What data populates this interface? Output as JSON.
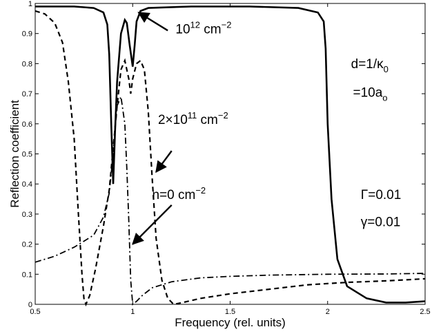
{
  "chart_data": {
    "type": "line",
    "title": "",
    "xlabel": "Frequency (rel. units)",
    "ylabel": "Reflection coefficient",
    "xlim": [
      0.5,
      2.5
    ],
    "ylim": [
      0,
      1
    ],
    "grid": false,
    "legend": "none",
    "xticks": [
      0.5,
      1,
      1.5,
      2,
      2.5
    ],
    "xtick_labels": [
      "0.5",
      "1",
      "1.5",
      "2",
      "2.5"
    ],
    "yticks": [
      0,
      0.1,
      0.2,
      0.3,
      0.4,
      0.5,
      0.6,
      0.7,
      0.8,
      0.9,
      1
    ],
    "ytick_labels": [
      "0",
      "0.1",
      "0.2",
      "0.3",
      "0.4",
      "0.5",
      "0.6",
      "0.7",
      "0.8",
      "0.9",
      "1"
    ],
    "series": [
      {
        "style": "solid",
        "points": [
          [
            0.5,
            0.99
          ],
          [
            0.7,
            0.99
          ],
          [
            0.8,
            0.985
          ],
          [
            0.85,
            0.97
          ],
          [
            0.87,
            0.93
          ],
          [
            0.88,
            0.83
          ],
          [
            0.89,
            0.6
          ],
          [
            0.9,
            0.4
          ],
          [
            0.91,
            0.58
          ],
          [
            0.92,
            0.74
          ],
          [
            0.94,
            0.9
          ],
          [
            0.96,
            0.945
          ],
          [
            0.97,
            0.935
          ],
          [
            0.985,
            0.86
          ],
          [
            1.0,
            0.79
          ],
          [
            1.01,
            0.86
          ],
          [
            1.02,
            0.94
          ],
          [
            1.04,
            0.975
          ],
          [
            1.08,
            0.985
          ],
          [
            1.3,
            0.99
          ],
          [
            1.6,
            0.99
          ],
          [
            1.85,
            0.985
          ],
          [
            1.95,
            0.97
          ],
          [
            1.98,
            0.94
          ],
          [
            1.99,
            0.85
          ],
          [
            2.0,
            0.6
          ],
          [
            2.02,
            0.35
          ],
          [
            2.05,
            0.15
          ],
          [
            2.1,
            0.06
          ],
          [
            2.2,
            0.02
          ],
          [
            2.3,
            0.006
          ],
          [
            2.4,
            0.006
          ],
          [
            2.5,
            0.01
          ]
        ]
      },
      {
        "style": "dashed",
        "points": [
          [
            0.5,
            0.975
          ],
          [
            0.55,
            0.965
          ],
          [
            0.6,
            0.935
          ],
          [
            0.64,
            0.87
          ],
          [
            0.67,
            0.74
          ],
          [
            0.7,
            0.55
          ],
          [
            0.72,
            0.32
          ],
          [
            0.74,
            0.1
          ],
          [
            0.75,
            0.02
          ],
          [
            0.76,
            0.0
          ],
          [
            0.78,
            0.03
          ],
          [
            0.81,
            0.12
          ],
          [
            0.85,
            0.26
          ],
          [
            0.88,
            0.38
          ],
          [
            0.9,
            0.52
          ],
          [
            0.92,
            0.66
          ],
          [
            0.94,
            0.78
          ],
          [
            0.96,
            0.81
          ],
          [
            0.98,
            0.75
          ],
          [
            0.99,
            0.7
          ],
          [
            1.0,
            0.75
          ],
          [
            1.02,
            0.8
          ],
          [
            1.04,
            0.81
          ],
          [
            1.06,
            0.78
          ],
          [
            1.08,
            0.64
          ],
          [
            1.1,
            0.42
          ],
          [
            1.12,
            0.22
          ],
          [
            1.15,
            0.08
          ],
          [
            1.18,
            0.02
          ],
          [
            1.21,
            0.0
          ],
          [
            1.25,
            0.005
          ],
          [
            1.35,
            0.02
          ],
          [
            1.5,
            0.035
          ],
          [
            1.7,
            0.05
          ],
          [
            1.9,
            0.065
          ],
          [
            2.1,
            0.073
          ],
          [
            2.3,
            0.078
          ],
          [
            2.5,
            0.085
          ]
        ]
      },
      {
        "style": "dashdot",
        "points": [
          [
            0.5,
            0.14
          ],
          [
            0.6,
            0.16
          ],
          [
            0.7,
            0.19
          ],
          [
            0.8,
            0.23
          ],
          [
            0.85,
            0.29
          ],
          [
            0.88,
            0.37
          ],
          [
            0.9,
            0.5
          ],
          [
            0.92,
            0.66
          ],
          [
            0.94,
            0.69
          ],
          [
            0.96,
            0.6
          ],
          [
            0.97,
            0.45
          ],
          [
            0.98,
            0.28
          ],
          [
            0.99,
            0.08
          ],
          [
            1.0,
            0.0
          ],
          [
            1.02,
            0.01
          ],
          [
            1.05,
            0.03
          ],
          [
            1.1,
            0.055
          ],
          [
            1.2,
            0.075
          ],
          [
            1.35,
            0.088
          ],
          [
            1.5,
            0.093
          ],
          [
            1.7,
            0.097
          ],
          [
            2.0,
            0.1
          ],
          [
            2.3,
            0.101
          ],
          [
            2.5,
            0.103
          ]
        ]
      }
    ],
    "annotations": [
      {
        "base": "10",
        "sup": "12",
        "rest": " cm",
        "rest_sup": "−2",
        "x": 1.22,
        "y": 0.9,
        "arrow_from": [
          1.18,
          0.91
        ],
        "arrow_to": [
          1.03,
          0.97
        ]
      },
      {
        "base": "2×10",
        "sup": "11",
        "rest": " cm",
        "rest_sup": "−2",
        "x": 1.13,
        "y": 0.6,
        "arrow_from": [
          1.2,
          0.51
        ],
        "arrow_to": [
          1.12,
          0.44
        ]
      },
      {
        "base": "n=0 cm",
        "sup": "−2",
        "rest": "",
        "rest_sup": "",
        "x": 1.1,
        "y": 0.35,
        "arrow_from": [
          1.2,
          0.33
        ],
        "arrow_to": [
          1.0,
          0.2
        ]
      },
      {
        "base": "d=1/κ",
        "sub": "0",
        "x": 2.12,
        "y": 0.785
      },
      {
        "base": "=10a",
        "sub": "o",
        "x": 2.13,
        "y": 0.69
      },
      {
        "base": "Γ=0.01",
        "x": 2.17,
        "y": 0.35
      },
      {
        "base": "γ=0.01",
        "x": 2.17,
        "y": 0.26
      }
    ]
  }
}
